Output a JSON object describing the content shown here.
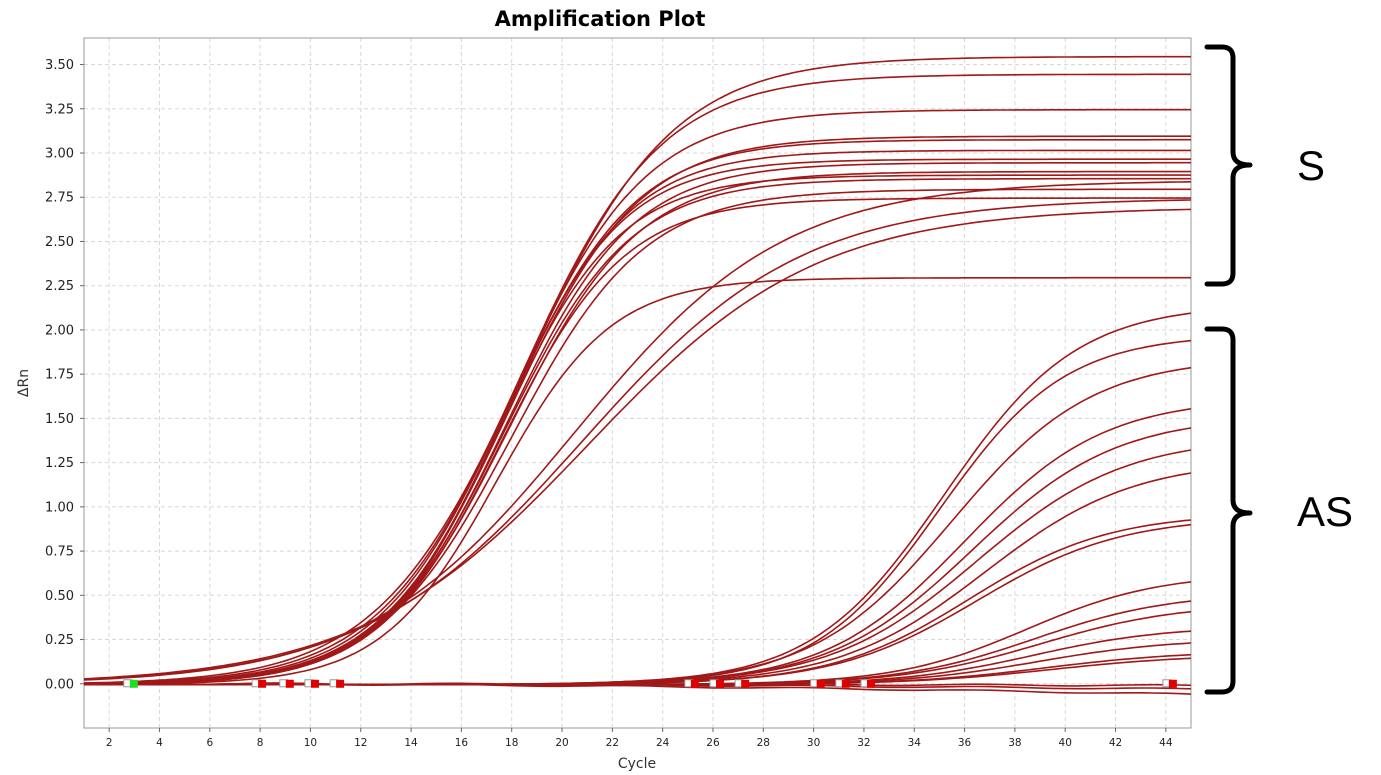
{
  "chart_data": {
    "type": "line",
    "title": "Amplification Plot",
    "xlabel": "Cycle",
    "ylabel": "ΔRn",
    "xlim": [
      1,
      45
    ],
    "ylim": [
      -0.25,
      3.65
    ],
    "x_ticks": [
      "2",
      "4",
      "6",
      "8",
      "10",
      "12",
      "14",
      "16",
      "18",
      "20",
      "22",
      "24",
      "26",
      "28",
      "30",
      "32",
      "34",
      "36",
      "38",
      "40",
      "42",
      "44"
    ],
    "y_ticks": [
      "0.00",
      "0.25",
      "0.50",
      "0.75",
      "1.00",
      "1.25",
      "1.50",
      "1.75",
      "2.00",
      "2.25",
      "2.50",
      "2.75",
      "3.00",
      "3.25",
      "3.50"
    ],
    "grid": true,
    "groups": [
      {
        "label": "S",
        "y_range": [
          2.25,
          3.65
        ]
      },
      {
        "label": "AS",
        "y_range": [
          -0.03,
          2.05
        ]
      }
    ],
    "colors": {
      "curve": "#a01818",
      "frame": "#9a9a9a",
      "grid": "#d8d8d8",
      "green_marker": "#22dd22",
      "red_marker": "#e00000"
    },
    "series_params": [
      {
        "mid": 18.5,
        "k": 0.34,
        "top": 3.55
      },
      {
        "mid": 18.3,
        "k": 0.36,
        "top": 3.45
      },
      {
        "mid": 18.0,
        "k": 0.38,
        "top": 3.25
      },
      {
        "mid": 17.9,
        "k": 0.39,
        "top": 3.1
      },
      {
        "mid": 17.8,
        "k": 0.4,
        "top": 3.08
      },
      {
        "mid": 17.7,
        "k": 0.41,
        "top": 3.02
      },
      {
        "mid": 17.6,
        "k": 0.42,
        "top": 2.97
      },
      {
        "mid": 17.8,
        "k": 0.4,
        "top": 2.95
      },
      {
        "mid": 17.9,
        "k": 0.39,
        "top": 2.9
      },
      {
        "mid": 17.5,
        "k": 0.42,
        "top": 2.88
      },
      {
        "mid": 17.7,
        "k": 0.4,
        "top": 2.86
      },
      {
        "mid": 18.0,
        "k": 0.38,
        "top": 2.8
      },
      {
        "mid": 17.6,
        "k": 0.41,
        "top": 2.75
      },
      {
        "mid": 17.4,
        "k": 0.44,
        "top": 2.3
      },
      {
        "mid": 20.5,
        "k": 0.24,
        "top": 2.85
      },
      {
        "mid": 20.8,
        "k": 0.23,
        "top": 2.75
      },
      {
        "mid": 21.0,
        "k": 0.22,
        "top": 2.7
      },
      {
        "mid": 35.2,
        "k": 0.38,
        "top": 2.15
      },
      {
        "mid": 35.0,
        "k": 0.4,
        "top": 1.98
      },
      {
        "mid": 35.5,
        "k": 0.36,
        "top": 1.85
      },
      {
        "mid": 36.0,
        "k": 0.36,
        "top": 1.62
      },
      {
        "mid": 36.3,
        "k": 0.35,
        "top": 1.52
      },
      {
        "mid": 36.5,
        "k": 0.34,
        "top": 1.4
      },
      {
        "mid": 36.8,
        "k": 0.34,
        "top": 1.27
      },
      {
        "mid": 36.2,
        "k": 0.36,
        "top": 0.97
      },
      {
        "mid": 36.5,
        "k": 0.35,
        "top": 0.95
      },
      {
        "mid": 38.5,
        "k": 0.38,
        "top": 0.63
      },
      {
        "mid": 38.8,
        "k": 0.37,
        "top": 0.52
      },
      {
        "mid": 39.0,
        "k": 0.36,
        "top": 0.46
      },
      {
        "mid": 38.7,
        "k": 0.38,
        "top": 0.33
      },
      {
        "mid": 38.9,
        "k": 0.37,
        "top": 0.26
      },
      {
        "mid": 39.2,
        "k": 0.36,
        "top": 0.19
      },
      {
        "mid": 39.4,
        "k": 0.35,
        "top": 0.17
      }
    ],
    "baseline_series": [
      {
        "y_end": -0.01
      },
      {
        "y_end": -0.03
      },
      {
        "y_end": -0.06
      }
    ],
    "markers": [
      {
        "x": 2.9,
        "color": "green"
      },
      {
        "x": 8.0,
        "color": "red"
      },
      {
        "x": 9.1,
        "color": "red"
      },
      {
        "x": 10.1,
        "color": "red"
      },
      {
        "x": 11.1,
        "color": "red"
      },
      {
        "x": 25.2,
        "color": "red"
      },
      {
        "x": 26.2,
        "color": "red"
      },
      {
        "x": 27.2,
        "color": "red"
      },
      {
        "x": 30.2,
        "color": "red"
      },
      {
        "x": 31.2,
        "color": "red"
      },
      {
        "x": 32.2,
        "color": "red"
      },
      {
        "x": 44.2,
        "color": "red"
      }
    ]
  }
}
